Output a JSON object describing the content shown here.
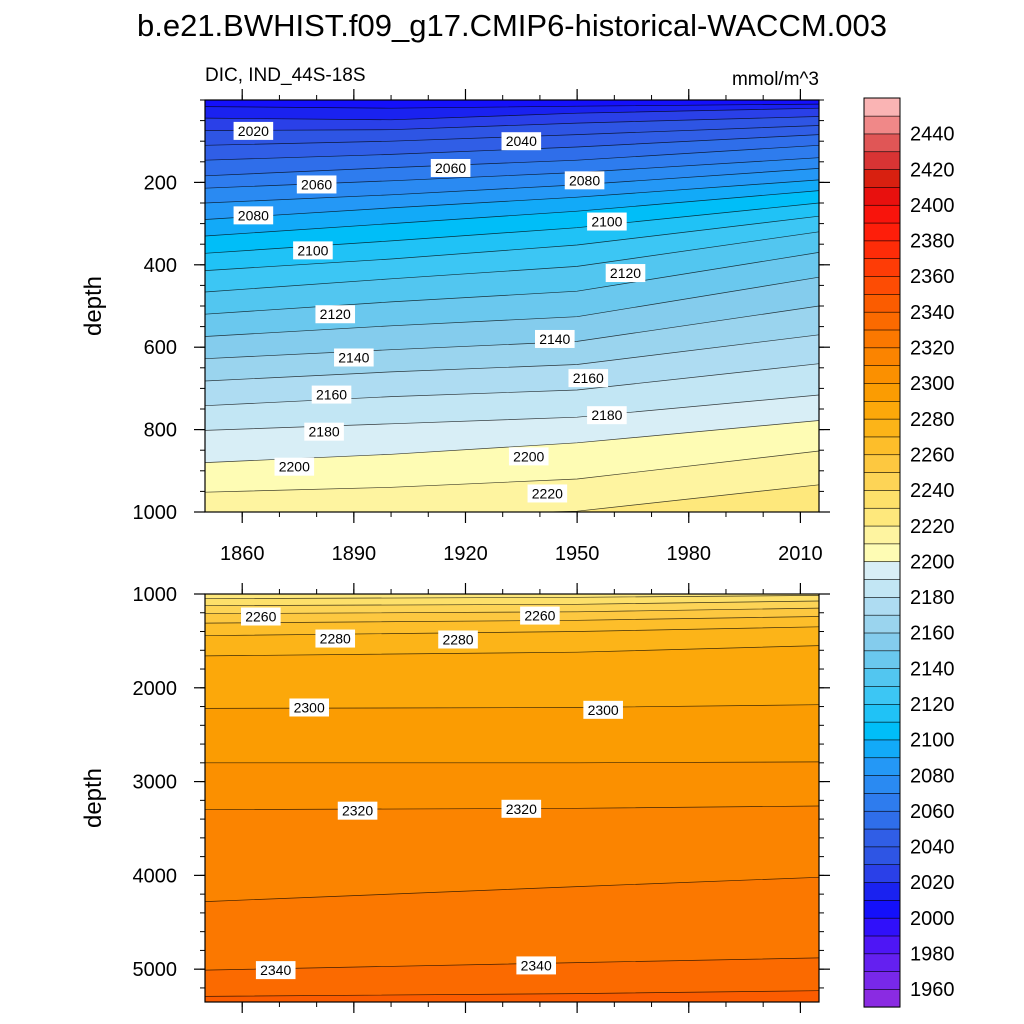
{
  "title": "b.e21.BWHIST.f09_g17.CMIP6-historical-WACCM.003",
  "chart_data": {
    "type": "contour",
    "variable_label": "DIC, IND_44S-18S",
    "units": "mmol/m^3",
    "colorbar": {
      "levels": [
        1950,
        1960,
        1970,
        1980,
        1990,
        2000,
        2010,
        2020,
        2030,
        2040,
        2050,
        2060,
        2070,
        2080,
        2090,
        2100,
        2110,
        2120,
        2130,
        2140,
        2150,
        2160,
        2170,
        2180,
        2190,
        2200,
        2210,
        2220,
        2230,
        2240,
        2250,
        2260,
        2270,
        2280,
        2290,
        2300,
        2310,
        2320,
        2330,
        2340,
        2350,
        2360,
        2370,
        2380,
        2390,
        2400,
        2410,
        2420,
        2430,
        2440,
        2450
      ],
      "colors": [
        "#8a2be2",
        "#7828ea",
        "#6420f0",
        "#4e16f5",
        "#3010fa",
        "#1410fa",
        "#1a22f0",
        "#2a40e8",
        "#2e55e4",
        "#305ee6",
        "#2f6eea",
        "#2e7cee",
        "#2a8af2",
        "#2498f6",
        "#12aaf8",
        "#00bef8",
        "#20c2f6",
        "#3cc6f4",
        "#52c6f0",
        "#6ac8ee",
        "#84cced",
        "#9ad4ee",
        "#aedcf2",
        "#c2e6f4",
        "#d8eef6",
        "#fefcb4",
        "#fef4a0",
        "#fee87c",
        "#fde06a",
        "#fdd456",
        "#fdc840",
        "#fdbe2a",
        "#fcb418",
        "#fca80a",
        "#fb9c02",
        "#fb9000",
        "#fb8400",
        "#fb7800",
        "#fb6a00",
        "#fb5c00",
        "#fd4c04",
        "#fe3c06",
        "#fe2c08",
        "#fe1e0a",
        "#f8140c",
        "#e8100e",
        "#d82010",
        "#d83434",
        "#e05656",
        "#f08888",
        "#fab4b4"
      ],
      "tick_labels": [
        "1960",
        "1980",
        "2000",
        "2020",
        "2040",
        "2060",
        "2080",
        "2100",
        "2120",
        "2140",
        "2160",
        "2180",
        "2200",
        "2220",
        "2240",
        "2260",
        "2280",
        "2300",
        "2320",
        "2340",
        "2360",
        "2380",
        "2400",
        "2420",
        "2440"
      ]
    },
    "panels": [
      {
        "name": "upper",
        "ylabel": "depth",
        "xlim": [
          1850,
          2015
        ],
        "ylim": [
          0,
          1000
        ],
        "y_inverted": true,
        "xticks": [
          1860,
          1890,
          1920,
          1950,
          1980,
          2010
        ],
        "yticks": [
          200,
          400,
          600,
          800,
          1000
        ],
        "contours": [
          {
            "level": 2010,
            "points": [
              [
                1850,
                16
              ],
              [
                1900,
                20
              ],
              [
                1950,
                15
              ],
              [
                2015,
                10
              ]
            ]
          },
          {
            "level": 2020,
            "points": [
              [
                1850,
                44
              ],
              [
                1900,
                48
              ],
              [
                1950,
                32
              ],
              [
                2015,
                20
              ]
            ]
          },
          {
            "level": 2030,
            "points": [
              [
                1850,
                74
              ],
              [
                1900,
                72
              ],
              [
                1950,
                56
              ],
              [
                2015,
                40
              ]
            ]
          },
          {
            "level": 2040,
            "points": [
              [
                1850,
                110
              ],
              [
                1900,
                100
              ],
              [
                1950,
                84
              ],
              [
                2015,
                62
              ]
            ]
          },
          {
            "level": 2050,
            "points": [
              [
                1850,
                146
              ],
              [
                1900,
                132
              ],
              [
                1950,
                114
              ],
              [
                2015,
                84
              ]
            ]
          },
          {
            "level": 2060,
            "points": [
              [
                1850,
                184
              ],
              [
                1900,
                164
              ],
              [
                1950,
                146
              ],
              [
                2015,
                110
              ]
            ]
          },
          {
            "level": 2070,
            "points": [
              [
                1850,
                214
              ],
              [
                1900,
                196
              ],
              [
                1950,
                176
              ],
              [
                2015,
                140
              ]
            ]
          },
          {
            "level": 2080,
            "points": [
              [
                1850,
                250
              ],
              [
                1900,
                230
              ],
              [
                1950,
                206
              ],
              [
                2015,
                166
              ]
            ]
          },
          {
            "level": 2090,
            "points": [
              [
                1850,
                290
              ],
              [
                1900,
                262
              ],
              [
                1950,
                236
              ],
              [
                2015,
                194
              ]
            ]
          },
          {
            "level": 2100,
            "points": [
              [
                1850,
                330
              ],
              [
                1900,
                300
              ],
              [
                1950,
                270
              ],
              [
                2015,
                220
              ]
            ]
          },
          {
            "level": 2110,
            "points": [
              [
                1850,
                372
              ],
              [
                1900,
                342
              ],
              [
                1950,
                310
              ],
              [
                2015,
                250
              ]
            ]
          },
          {
            "level": 2120,
            "points": [
              [
                1850,
                414
              ],
              [
                1900,
                386
              ],
              [
                1950,
                352
              ],
              [
                2015,
                282
              ]
            ]
          },
          {
            "level": 2130,
            "points": [
              [
                1850,
                466
              ],
              [
                1900,
                434
              ],
              [
                1950,
                404
              ],
              [
                2015,
                320
              ]
            ]
          },
          {
            "level": 2140,
            "points": [
              [
                1850,
                520
              ],
              [
                1900,
                490
              ],
              [
                1950,
                464
              ],
              [
                2015,
                370
              ]
            ]
          },
          {
            "level": 2150,
            "points": [
              [
                1850,
                574
              ],
              [
                1900,
                548
              ],
              [
                1950,
                526
              ],
              [
                2015,
                430
              ]
            ]
          },
          {
            "level": 2160,
            "points": [
              [
                1850,
                628
              ],
              [
                1900,
                606
              ],
              [
                1950,
                586
              ],
              [
                2015,
                500
              ]
            ]
          },
          {
            "level": 2170,
            "points": [
              [
                1850,
                682
              ],
              [
                1900,
                660
              ],
              [
                1950,
                642
              ],
              [
                2015,
                570
              ]
            ]
          },
          {
            "level": 2180,
            "points": [
              [
                1850,
                742
              ],
              [
                1900,
                720
              ],
              [
                1950,
                704
              ],
              [
                2015,
                640
              ]
            ]
          },
          {
            "level": 2190,
            "points": [
              [
                1850,
                802
              ],
              [
                1900,
                786
              ],
              [
                1950,
                770
              ],
              [
                2015,
                716
              ]
            ]
          },
          {
            "level": 2200,
            "points": [
              [
                1850,
                880
              ],
              [
                1900,
                860
              ],
              [
                1950,
                832
              ],
              [
                2015,
                778
              ]
            ]
          },
          {
            "level": 2210,
            "points": [
              [
                1850,
                952
              ],
              [
                1900,
                940
              ],
              [
                1950,
                920
              ],
              [
                2015,
                852
              ]
            ]
          },
          {
            "level": 2220,
            "points": [
              [
                1850,
                1012
              ],
              [
                1900,
                1010
              ],
              [
                1950,
                998
              ],
              [
                2015,
                934
              ]
            ]
          }
        ],
        "labels": [
          {
            "text": "2020",
            "x": 1863,
            "y": 75
          },
          {
            "text": "2040",
            "x": 1935,
            "y": 100
          },
          {
            "text": "2060",
            "x": 1880,
            "y": 205
          },
          {
            "text": "2060",
            "x": 1916,
            "y": 165
          },
          {
            "text": "2080",
            "x": 1952,
            "y": 195
          },
          {
            "text": "2080",
            "x": 1863,
            "y": 280
          },
          {
            "text": "2100",
            "x": 1958,
            "y": 295
          },
          {
            "text": "2100",
            "x": 1879,
            "y": 365
          },
          {
            "text": "2120",
            "x": 1963,
            "y": 420
          },
          {
            "text": "2120",
            "x": 1885,
            "y": 520
          },
          {
            "text": "2140",
            "x": 1944,
            "y": 580
          },
          {
            "text": "2140",
            "x": 1890,
            "y": 625
          },
          {
            "text": "2160",
            "x": 1953,
            "y": 675
          },
          {
            "text": "2160",
            "x": 1884,
            "y": 715
          },
          {
            "text": "2180",
            "x": 1958,
            "y": 765
          },
          {
            "text": "2180",
            "x": 1882,
            "y": 805
          },
          {
            "text": "2200",
            "x": 1937,
            "y": 865
          },
          {
            "text": "2200",
            "x": 1874,
            "y": 890
          },
          {
            "text": "2220",
            "x": 1942,
            "y": 955
          }
        ]
      },
      {
        "name": "lower",
        "ylabel": "depth",
        "xlim": [
          1850,
          2015
        ],
        "ylim": [
          1000,
          5350
        ],
        "y_inverted": true,
        "xticks": [],
        "yticks": [
          1000,
          2000,
          3000,
          4000,
          5000
        ],
        "contours": [
          {
            "level": 2230,
            "points": [
              [
                1850,
                1050
              ],
              [
                1950,
                1035
              ],
              [
                2015,
                1015
              ]
            ]
          },
          {
            "level": 2240,
            "points": [
              [
                1850,
                1125
              ],
              [
                1950,
                1110
              ],
              [
                2015,
                1075
              ]
            ]
          },
          {
            "level": 2250,
            "points": [
              [
                1850,
                1210
              ],
              [
                1950,
                1190
              ],
              [
                2015,
                1150
              ]
            ]
          },
          {
            "level": 2260,
            "points": [
              [
                1850,
                1310
              ],
              [
                1950,
                1280
              ],
              [
                2015,
                1240
              ]
            ]
          },
          {
            "level": 2270,
            "points": [
              [
                1850,
                1445
              ],
              [
                1950,
                1400
              ],
              [
                2015,
                1350
              ]
            ]
          },
          {
            "level": 2280,
            "points": [
              [
                1850,
                1660
              ],
              [
                1950,
                1620
              ],
              [
                2015,
                1550
              ]
            ]
          },
          {
            "level": 2290,
            "points": [
              [
                1850,
                2220
              ],
              [
                1950,
                2210
              ],
              [
                2015,
                2180
              ]
            ]
          },
          {
            "level": 2300,
            "points": [
              [
                1850,
                2800
              ],
              [
                1950,
                2800
              ],
              [
                2015,
                2790
              ]
            ]
          },
          {
            "level": 2310,
            "points": [
              [
                1850,
                3300
              ],
              [
                1950,
                3285
              ],
              [
                2015,
                3260
              ]
            ]
          },
          {
            "level": 2320,
            "points": [
              [
                1850,
                4280
              ],
              [
                1950,
                4120
              ],
              [
                2015,
                4020
              ]
            ]
          },
          {
            "level": 2330,
            "points": [
              [
                1850,
                5010
              ],
              [
                1950,
                4930
              ],
              [
                2015,
                4880
              ]
            ]
          },
          {
            "level": 2340,
            "points": [
              [
                1850,
                5290
              ],
              [
                1950,
                5260
              ],
              [
                2015,
                5230
              ]
            ]
          }
        ],
        "labels": [
          {
            "text": "2260",
            "x": 1865,
            "y": 1240
          },
          {
            "text": "2260",
            "x": 1940,
            "y": 1230
          },
          {
            "text": "2280",
            "x": 1885,
            "y": 1475
          },
          {
            "text": "2280",
            "x": 1918,
            "y": 1485
          },
          {
            "text": "2300",
            "x": 1878,
            "y": 2210
          },
          {
            "text": "2300",
            "x": 1957,
            "y": 2235
          },
          {
            "text": "2320",
            "x": 1891,
            "y": 3310
          },
          {
            "text": "2320",
            "x": 1935,
            "y": 3290
          },
          {
            "text": "2340",
            "x": 1869,
            "y": 5010
          },
          {
            "text": "2340",
            "x": 1939,
            "y": 4960
          }
        ]
      }
    ]
  }
}
